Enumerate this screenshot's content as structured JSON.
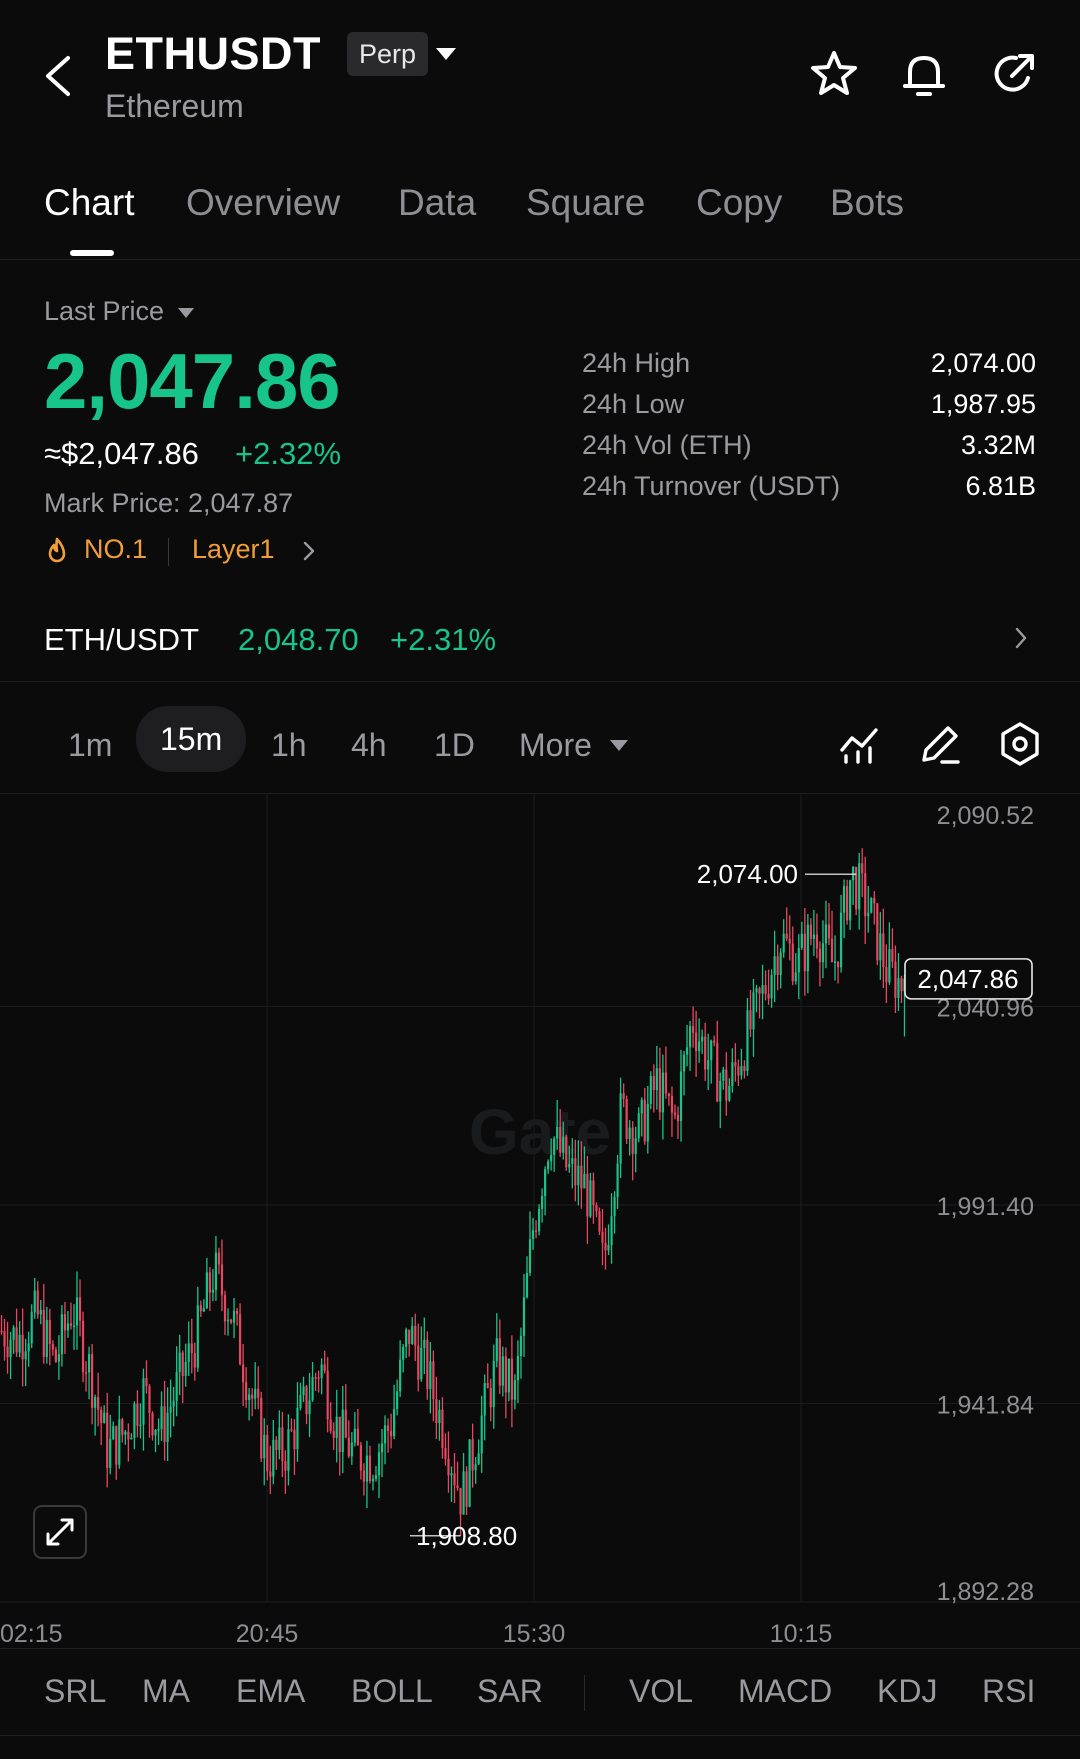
{
  "header": {
    "title": "ETHUSDT",
    "badge": "Perp",
    "subtitle": "Ethereum",
    "icons": [
      "back-arrow-icon",
      "star-icon",
      "bell-icon",
      "share-icon"
    ]
  },
  "tabs": [
    {
      "label": "Chart",
      "active": true
    },
    {
      "label": "Overview"
    },
    {
      "label": "Data"
    },
    {
      "label": "Square"
    },
    {
      "label": "Copy"
    },
    {
      "label": "Bots"
    }
  ],
  "price": {
    "label": "Last Price",
    "last": "2,047.86",
    "usd": "≈$2,047.86",
    "change": "+2.32%",
    "mark": "Mark Price: 2,047.87",
    "rank": "NO.1",
    "category": "Layer1",
    "up_color": "#17c48a",
    "tag_color": "#f29e38"
  },
  "stats": [
    {
      "key": "24h  High",
      "value": "2,074.00"
    },
    {
      "key": "24h  Low",
      "value": "1,987.95"
    },
    {
      "key": "24h  Vol (ETH)",
      "value": "3.32M"
    },
    {
      "key": "24h  Turnover (USDT)",
      "value": "6.81B"
    }
  ],
  "spot": {
    "pair": "ETH/USDT",
    "price": "2,048.70",
    "change": "+2.31%"
  },
  "intervals": [
    {
      "label": "1m"
    },
    {
      "label": "15m",
      "active": true
    },
    {
      "label": "1h"
    },
    {
      "label": "4h"
    },
    {
      "label": "1D"
    },
    {
      "label": "More"
    }
  ],
  "toolbar_icons": [
    "indicator-icon",
    "draw-pen-icon",
    "settings-hex-icon"
  ],
  "chart_data": {
    "type": "candlestick",
    "symbol": "ETHUSDT",
    "interval": "15m",
    "y_ticks": [
      "2,090.52",
      "2,040.96",
      "1,991.40",
      "1,941.84",
      "1,892.28"
    ],
    "x_ticks": [
      "02:15",
      "20:45",
      "15:30",
      "10:15"
    ],
    "ylim": [
      1892.28,
      2090.52
    ],
    "high_marker": "2,074.00",
    "low_marker": "1,908.80",
    "current_price": "2,047.86",
    "up_color": "#17c48a",
    "down_color": "#e8475f",
    "watermark": "Gate",
    "close_path": [
      1960,
      1958,
      1964,
      1952,
      1966,
      1950,
      1930,
      1935,
      1945,
      1935,
      1947,
      1958,
      1975,
      1964,
      1946,
      1928,
      1930,
      1940,
      1952,
      1935,
      1929,
      1928,
      1937,
      1960,
      1950,
      1935,
      1918,
      1936,
      1952,
      1944,
      1985,
      2010,
      2000,
      1996,
      1976,
      2015,
      2009,
      2022,
      2012,
      2038,
      2027,
      2020,
      2032,
      2044,
      2058,
      2052,
      2061,
      2051,
      2074,
      2065,
      2050,
      2046
    ]
  },
  "indicators": [
    "SRL",
    "MA",
    "EMA",
    "BOLL",
    "SAR",
    "VOL",
    "MACD",
    "KDJ",
    "RSI"
  ]
}
